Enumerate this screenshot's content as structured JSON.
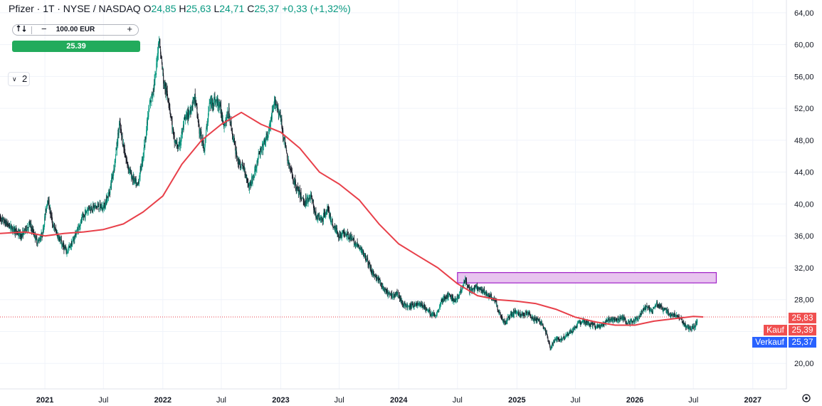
{
  "header": {
    "symbol": "Pfizer · 1T · NYSE / NASDAQ",
    "open_label": "O",
    "open": "24,85",
    "high_label": "H",
    "high": "25,63",
    "low_label": "L",
    "low": "24,71",
    "close_label": "C",
    "close": "25,37",
    "change": "+0,33 (+1,32%)"
  },
  "order_panel": {
    "quantity": "100.00 EUR",
    "minus": "−",
    "plus": "+",
    "buy_price": "25.39",
    "indicator_count": "2"
  },
  "price_tags": {
    "last": "25,83",
    "buy_label": "Kauf",
    "buy": "25,39",
    "sell_label": "Verkauf",
    "sell": "25,37"
  },
  "colors": {
    "up": "#089981",
    "down": "#131722",
    "ma": "#e8404a",
    "zone_fill": "#e8c4ef",
    "zone_stroke": "#a020c8",
    "buy_tag": "#f05050",
    "sell_tag": "#2962ff",
    "buy_button": "#22ab5c"
  },
  "chart_data": {
    "type": "line",
    "xlabel": "",
    "ylabel": "",
    "ylim": [
      16.8,
      65.6
    ],
    "y_ticks": [
      "64,00",
      "60,00",
      "56,00",
      "52,00",
      "48,00",
      "44,00",
      "40,00",
      "36,00",
      "32,00",
      "28,00",
      "24,00",
      "20,00"
    ],
    "y_tick_values": [
      64,
      60,
      56,
      52,
      48,
      44,
      40,
      36,
      32,
      28,
      24,
      20
    ],
    "x_ticks": [
      "2021",
      "Jul",
      "2022",
      "Jul",
      "2023",
      "Jul",
      "2024",
      "Jul",
      "2025",
      "Jul",
      "2026",
      "Jul",
      "2027"
    ],
    "x_tick_dates": [
      "2021-01-01",
      "2021-07-01",
      "2022-01-01",
      "2022-07-01",
      "2023-01-01",
      "2023-07-01",
      "2024-01-01",
      "2024-07-01",
      "2025-01-01",
      "2025-07-01",
      "2026-01-01",
      "2026-07-01",
      "2027-01-01"
    ],
    "x_tick_bold": [
      true,
      false,
      true,
      false,
      true,
      false,
      true,
      false,
      true,
      false,
      true,
      false,
      true
    ],
    "series": [
      {
        "role": "price",
        "points": [
          [
            "2020-08-15",
            38.2
          ],
          [
            "2020-09-15",
            37.2
          ],
          [
            "2020-10-20",
            36.0
          ],
          [
            "2020-11-15",
            37.5
          ],
          [
            "2020-12-10",
            35.2
          ],
          [
            "2020-12-25",
            36.3
          ],
          [
            "2021-01-10",
            40.8
          ],
          [
            "2021-01-25",
            37.5
          ],
          [
            "2021-02-20",
            35.2
          ],
          [
            "2021-03-10",
            34.0
          ],
          [
            "2021-03-25",
            35.0
          ],
          [
            "2021-04-20",
            37.5
          ],
          [
            "2021-05-15",
            39.5
          ],
          [
            "2021-06-15",
            39.7
          ],
          [
            "2021-07-01",
            39.5
          ],
          [
            "2021-07-20",
            41.5
          ],
          [
            "2021-08-05",
            45.0
          ],
          [
            "2021-08-20",
            50.0
          ],
          [
            "2021-09-10",
            45.5
          ],
          [
            "2021-09-25",
            43.6
          ],
          [
            "2021-10-15",
            42.2
          ],
          [
            "2021-11-01",
            46.0
          ],
          [
            "2021-11-20",
            52.0
          ],
          [
            "2021-12-10",
            56.0
          ],
          [
            "2021-12-20",
            61.0
          ],
          [
            "2022-01-05",
            55.0
          ],
          [
            "2022-01-20",
            53.0
          ],
          [
            "2022-02-05",
            48.0
          ],
          [
            "2022-02-20",
            47.0
          ],
          [
            "2022-03-10",
            50.5
          ],
          [
            "2022-03-25",
            51.5
          ],
          [
            "2022-04-10",
            53.5
          ],
          [
            "2022-04-25",
            49.0
          ],
          [
            "2022-05-10",
            47.0
          ],
          [
            "2022-05-25",
            52.5
          ],
          [
            "2022-06-10",
            53.0
          ],
          [
            "2022-06-25",
            52.5
          ],
          [
            "2022-07-10",
            50.0
          ],
          [
            "2022-07-25",
            51.5
          ],
          [
            "2022-08-10",
            47.5
          ],
          [
            "2022-08-25",
            45.0
          ],
          [
            "2022-09-10",
            44.5
          ],
          [
            "2022-09-25",
            42.2
          ],
          [
            "2022-10-10",
            43.5
          ],
          [
            "2022-10-25",
            46.0
          ],
          [
            "2022-11-10",
            47.5
          ],
          [
            "2022-11-25",
            49.0
          ],
          [
            "2022-12-15",
            53.0
          ],
          [
            "2022-12-30",
            51.0
          ],
          [
            "2023-01-10",
            48.5
          ],
          [
            "2023-01-25",
            45.0
          ],
          [
            "2023-02-10",
            43.0
          ],
          [
            "2023-02-25",
            41.5
          ],
          [
            "2023-03-15",
            40.2
          ],
          [
            "2023-04-05",
            41.0
          ],
          [
            "2023-04-20",
            38.5
          ],
          [
            "2023-05-10",
            38.0
          ],
          [
            "2023-05-25",
            39.5
          ],
          [
            "2023-06-10",
            37.5
          ],
          [
            "2023-07-01",
            36.0
          ],
          [
            "2023-07-20",
            36.5
          ],
          [
            "2023-08-10",
            35.5
          ],
          [
            "2023-09-01",
            34.5
          ],
          [
            "2023-09-20",
            33.5
          ],
          [
            "2023-10-10",
            31.5
          ],
          [
            "2023-10-30",
            30.5
          ],
          [
            "2023-11-20",
            29.0
          ],
          [
            "2023-12-10",
            28.5
          ],
          [
            "2023-12-28",
            28.8
          ],
          [
            "2024-01-15",
            27.5
          ],
          [
            "2024-01-30",
            27.0
          ],
          [
            "2024-02-15",
            27.3
          ],
          [
            "2024-03-05",
            27.5
          ],
          [
            "2024-03-25",
            26.9
          ],
          [
            "2024-04-10",
            26.2
          ],
          [
            "2024-04-25",
            26.0
          ],
          [
            "2024-05-15",
            28.0
          ],
          [
            "2024-06-05",
            28.5
          ],
          [
            "2024-06-25",
            27.8
          ],
          [
            "2024-07-10",
            29.0
          ],
          [
            "2024-07-25",
            30.5
          ],
          [
            "2024-08-10",
            29.0
          ],
          [
            "2024-08-25",
            29.5
          ],
          [
            "2024-09-10",
            29.2
          ],
          [
            "2024-09-25",
            28.8
          ],
          [
            "2024-10-10",
            28.5
          ],
          [
            "2024-10-25",
            28.0
          ],
          [
            "2024-11-10",
            26.0
          ],
          [
            "2024-11-25",
            25.0
          ],
          [
            "2024-12-10",
            26.0
          ],
          [
            "2024-12-28",
            26.5
          ],
          [
            "2025-01-15",
            26.0
          ],
          [
            "2025-02-05",
            26.5
          ],
          [
            "2025-02-20",
            25.5
          ],
          [
            "2025-03-05",
            25.5
          ],
          [
            "2025-03-20",
            25.0
          ],
          [
            "2025-04-05",
            23.5
          ],
          [
            "2025-04-15",
            21.8
          ],
          [
            "2025-04-30",
            23.0
          ],
          [
            "2025-05-15",
            23.0
          ],
          [
            "2025-06-01",
            23.5
          ],
          [
            "2025-06-20",
            24.0
          ],
          [
            "2025-07-10",
            25.0
          ],
          [
            "2025-07-25",
            25.2
          ],
          [
            "2025-08-10",
            25.0
          ],
          [
            "2025-08-25",
            24.8
          ],
          [
            "2025-09-10",
            24.5
          ],
          [
            "2025-09-25",
            24.8
          ],
          [
            "2025-10-10",
            25.5
          ],
          [
            "2025-10-25",
            25.5
          ],
          [
            "2025-11-10",
            25.5
          ],
          [
            "2025-11-25",
            25.8
          ],
          [
            "2025-12-10",
            25.0
          ],
          [
            "2025-12-25",
            25.3
          ],
          [
            "2026-01-10",
            25.5
          ],
          [
            "2026-01-25",
            26.8
          ],
          [
            "2026-02-10",
            27.0
          ],
          [
            "2026-02-25",
            26.5
          ],
          [
            "2026-03-10",
            27.5
          ],
          [
            "2026-03-25",
            27.0
          ],
          [
            "2026-04-10",
            26.5
          ],
          [
            "2026-04-25",
            26.0
          ],
          [
            "2026-05-10",
            26.0
          ],
          [
            "2026-05-25",
            25.5
          ],
          [
            "2026-06-10",
            24.5
          ],
          [
            "2026-06-25",
            24.4
          ],
          [
            "2026-07-05",
            24.7
          ],
          [
            "2026-07-15",
            25.37
          ]
        ]
      },
      {
        "role": "moving-average",
        "points": [
          [
            "2020-08-15",
            36.3
          ],
          [
            "2020-11-01",
            36.5
          ],
          [
            "2021-01-01",
            36.0
          ],
          [
            "2021-03-01",
            36.3
          ],
          [
            "2021-05-01",
            36.5
          ],
          [
            "2021-07-01",
            36.8
          ],
          [
            "2021-09-01",
            37.5
          ],
          [
            "2021-11-01",
            39.0
          ],
          [
            "2022-01-01",
            41.0
          ],
          [
            "2022-03-01",
            45.0
          ],
          [
            "2022-05-01",
            48.0
          ],
          [
            "2022-07-01",
            50.0
          ],
          [
            "2022-09-01",
            51.5
          ],
          [
            "2022-11-01",
            50.0
          ],
          [
            "2023-01-01",
            49.0
          ],
          [
            "2023-03-01",
            47.0
          ],
          [
            "2023-05-01",
            44.0
          ],
          [
            "2023-07-01",
            42.5
          ],
          [
            "2023-09-01",
            40.5
          ],
          [
            "2023-11-01",
            37.5
          ],
          [
            "2024-01-01",
            35.0
          ],
          [
            "2024-03-01",
            33.5
          ],
          [
            "2024-05-01",
            32.0
          ],
          [
            "2024-07-01",
            30.0
          ],
          [
            "2024-09-01",
            28.5
          ],
          [
            "2024-11-01",
            28.0
          ],
          [
            "2025-01-01",
            27.8
          ],
          [
            "2025-03-01",
            27.5
          ],
          [
            "2025-05-01",
            26.8
          ],
          [
            "2025-07-01",
            25.8
          ],
          [
            "2025-09-01",
            25.2
          ],
          [
            "2025-11-01",
            24.8
          ],
          [
            "2026-01-01",
            24.8
          ],
          [
            "2026-03-01",
            25.3
          ],
          [
            "2026-05-01",
            25.6
          ],
          [
            "2026-07-01",
            25.9
          ],
          [
            "2026-08-01",
            25.83
          ]
        ]
      }
    ],
    "zone": {
      "x0": "2024-07-01",
      "x1": "2026-09-10",
      "y0": 30.1,
      "y1": 31.4
    }
  }
}
